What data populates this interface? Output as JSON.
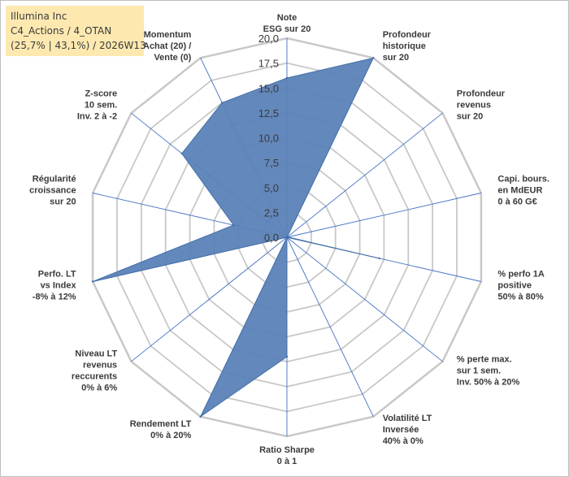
{
  "header": {
    "line1": "Illumina Inc",
    "line2": "C4_Actions / 4_OTAN",
    "line3": "(25,7% | 43,1%) / 2026W13",
    "background": "#fde9b0"
  },
  "chart_data": {
    "type": "radar",
    "title": "",
    "range": [
      0,
      20
    ],
    "ticks": [
      "0,0",
      "2,5",
      "5,0",
      "7,5",
      "10,0",
      "12,5",
      "15,0",
      "17,5",
      "20,0"
    ],
    "tick_values": [
      0,
      2.5,
      5,
      7.5,
      10,
      12.5,
      15,
      17.5,
      20
    ],
    "axes": [
      [
        "Note",
        "ESG sur 20"
      ],
      [
        "Profondeur",
        "historique",
        "sur 20"
      ],
      [
        "Profondeur",
        "revenus",
        "sur 20"
      ],
      [
        "Capi. bours.",
        "en MdEUR",
        "0 à 60 G€"
      ],
      [
        "% perfo 1A",
        "positive",
        "50% à 80%"
      ],
      [
        "% perte max.",
        "sur 1 sem.",
        "Inv. 50% à 20%"
      ],
      [
        "Volatilité LT",
        "Inversée",
        "40% à 0%"
      ],
      [
        "Ratio Sharpe",
        "0 à 1"
      ],
      [
        "Rendement LT",
        "0% à 20%"
      ],
      [
        "Niveau LT",
        "revenus",
        "reccurents",
        "0% à 6%"
      ],
      [
        "Perfo. LT",
        "vs Index",
        "-8% à 12%"
      ],
      [
        "Régularité",
        "croissance",
        "sur 20"
      ],
      [
        "Z-score",
        "10 sem.",
        "Inv. 2 à -2"
      ],
      [
        "Momentum",
        "Achat (20) /",
        "Vente (0)"
      ]
    ],
    "series": [
      {
        "name": "Illumina Inc",
        "values": [
          16,
          20,
          0,
          0.1,
          9.5,
          0,
          0,
          12,
          20,
          0,
          20,
          5.5,
          13.5,
          15
        ],
        "fill": "#5b82b8",
        "stroke": "#4470a8"
      }
    ],
    "grid_color": "#c8c8c8",
    "spoke_color": "#4472c4"
  }
}
